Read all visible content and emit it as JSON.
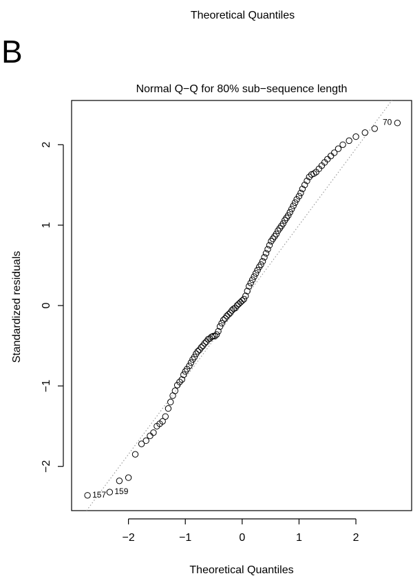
{
  "header": {
    "top_xlabel": "Theoretical Quantiles",
    "panel_letter": "B"
  },
  "chart_data": {
    "type": "scatter",
    "title": "Normal Q−Q for 80% sub−sequence length",
    "xlabel": "Theoretical Quantiles",
    "ylabel": "Standardized residuals",
    "xlim": [
      -3.0,
      2.98
    ],
    "ylim": [
      -2.55,
      2.55
    ],
    "x_ticks": [
      -2,
      -1,
      0,
      1,
      2
    ],
    "x_tick_labels": [
      "−2",
      "−1",
      "0",
      "1",
      "2"
    ],
    "y_ticks": [
      -2,
      -1,
      0,
      1,
      2
    ],
    "y_tick_labels": [
      "−2",
      "−1",
      "0",
      "1",
      "2"
    ],
    "grid": false,
    "reference_line": {
      "style": "dotted",
      "slope": 0.95,
      "intercept": 0.05
    },
    "labeled_points": [
      {
        "label": "157",
        "x": -2.72,
        "y": -2.36
      },
      {
        "label": "159",
        "x": -2.33,
        "y": -2.32
      },
      {
        "label": "70",
        "x": 2.73,
        "y": 2.27
      }
    ],
    "points_x": [
      -2.72,
      -2.33,
      -2.16,
      -2.0,
      -1.88,
      -1.77,
      -1.69,
      -1.62,
      -1.56,
      -1.5,
      -1.45,
      -1.4,
      -1.35,
      -1.3,
      -1.26,
      -1.22,
      -1.18,
      -1.14,
      -1.1,
      -1.06,
      -1.03,
      -1.0,
      -0.97,
      -0.93,
      -0.9,
      -0.87,
      -0.84,
      -0.81,
      -0.78,
      -0.75,
      -0.72,
      -0.69,
      -0.66,
      -0.63,
      -0.6,
      -0.57,
      -0.54,
      -0.51,
      -0.48,
      -0.45,
      -0.42,
      -0.39,
      -0.36,
      -0.33,
      -0.3,
      -0.27,
      -0.24,
      -0.21,
      -0.18,
      -0.15,
      -0.12,
      -0.09,
      -0.06,
      -0.03,
      0.0,
      0.03,
      0.06,
      0.09,
      0.12,
      0.15,
      0.18,
      0.21,
      0.24,
      0.27,
      0.3,
      0.33,
      0.36,
      0.39,
      0.42,
      0.45,
      0.48,
      0.51,
      0.54,
      0.57,
      0.6,
      0.63,
      0.66,
      0.69,
      0.72,
      0.75,
      0.78,
      0.81,
      0.84,
      0.87,
      0.9,
      0.93,
      0.96,
      1.0,
      1.03,
      1.06,
      1.1,
      1.14,
      1.18,
      1.22,
      1.26,
      1.3,
      1.35,
      1.4,
      1.45,
      1.5,
      1.56,
      1.62,
      1.69,
      1.77,
      1.88,
      2.0,
      2.16,
      2.33,
      2.73
    ],
    "points_y": [
      -2.36,
      -2.32,
      -2.18,
      -2.14,
      -1.85,
      -1.72,
      -1.68,
      -1.62,
      -1.58,
      -1.5,
      -1.47,
      -1.44,
      -1.38,
      -1.28,
      -1.2,
      -1.12,
      -1.06,
      -0.99,
      -0.95,
      -0.92,
      -0.86,
      -0.82,
      -0.79,
      -0.75,
      -0.71,
      -0.67,
      -0.64,
      -0.6,
      -0.57,
      -0.55,
      -0.52,
      -0.5,
      -0.47,
      -0.45,
      -0.42,
      -0.41,
      -0.39,
      -0.38,
      -0.38,
      -0.36,
      -0.32,
      -0.26,
      -0.22,
      -0.18,
      -0.16,
      -0.13,
      -0.11,
      -0.09,
      -0.06,
      -0.04,
      -0.03,
      0.0,
      0.02,
      0.04,
      0.06,
      0.08,
      0.12,
      0.18,
      0.24,
      0.28,
      0.32,
      0.36,
      0.4,
      0.44,
      0.48,
      0.51,
      0.55,
      0.6,
      0.65,
      0.7,
      0.75,
      0.8,
      0.83,
      0.86,
      0.89,
      0.93,
      0.96,
      0.99,
      1.02,
      1.06,
      1.09,
      1.12,
      1.16,
      1.2,
      1.24,
      1.28,
      1.32,
      1.36,
      1.4,
      1.45,
      1.5,
      1.55,
      1.6,
      1.63,
      1.64,
      1.66,
      1.7,
      1.74,
      1.78,
      1.82,
      1.86,
      1.9,
      1.95,
      2.0,
      2.05,
      2.1,
      2.15,
      2.2,
      2.27
    ]
  }
}
